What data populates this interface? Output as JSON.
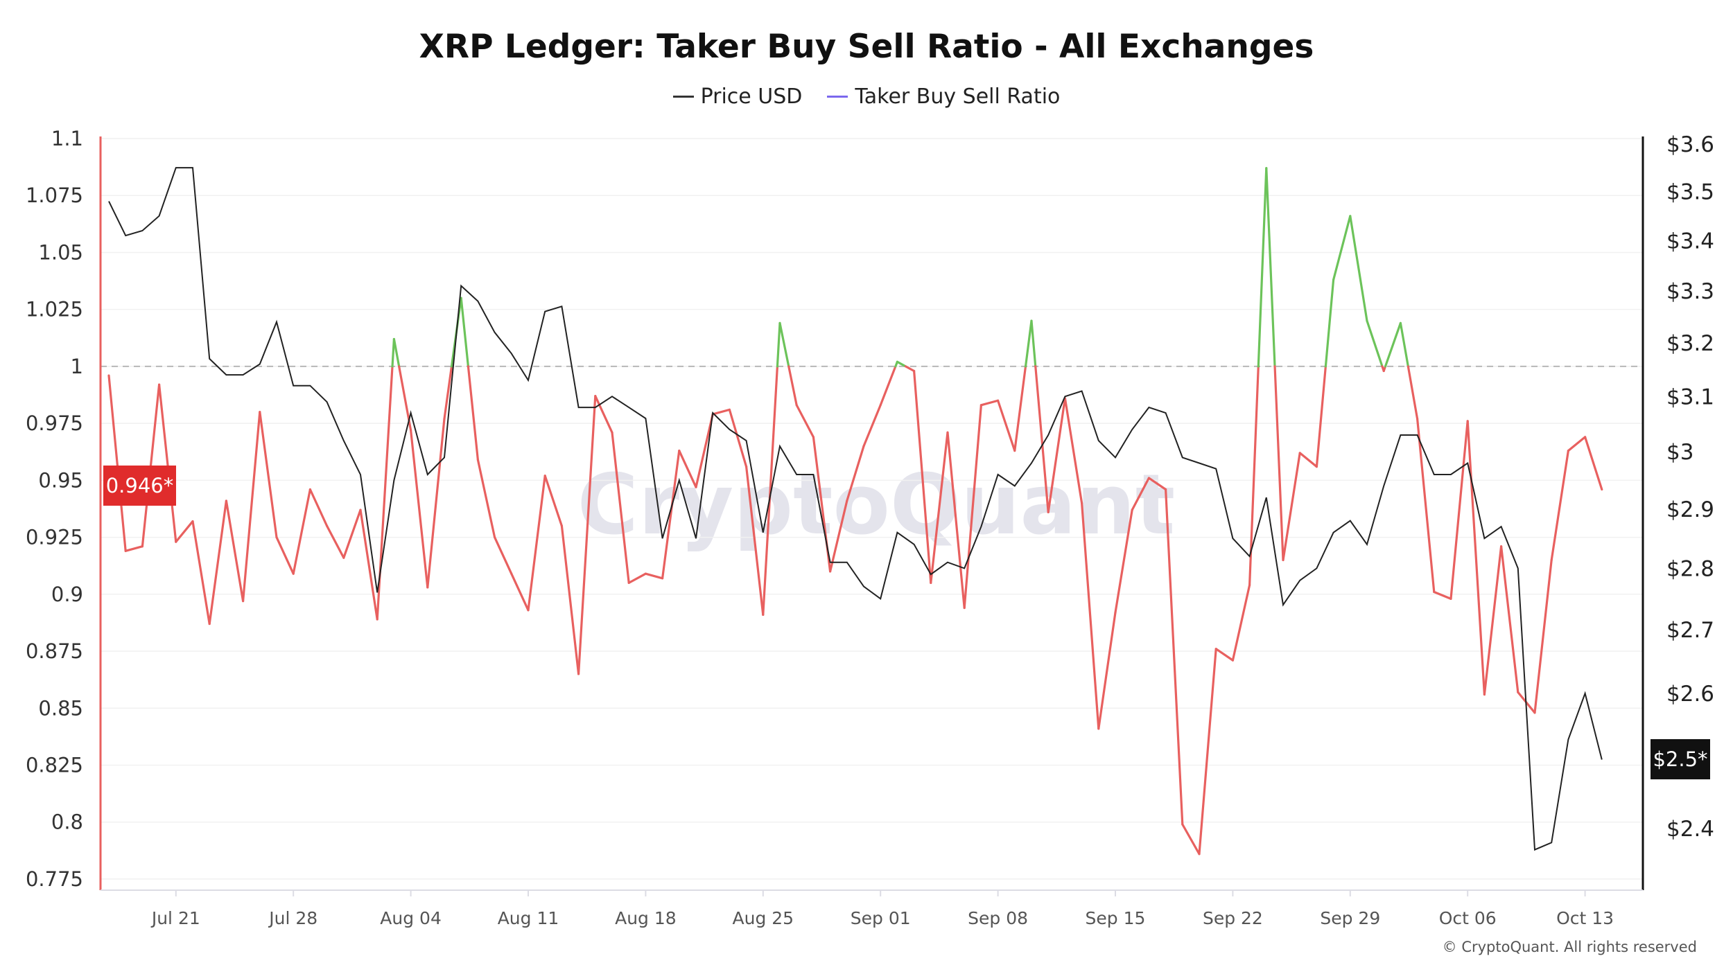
{
  "chart_data": {
    "type": "line",
    "title": "XRP Ledger: Taker Buy Sell Ratio - All Exchanges",
    "legend": {
      "placement": "top-center",
      "entries": [
        "Price USD",
        "Taker Buy Sell Ratio"
      ]
    },
    "x": [
      "Jul 17",
      "Jul 18",
      "Jul 19",
      "Jul 20",
      "Jul 21",
      "Jul 22",
      "Jul 23",
      "Jul 24",
      "Jul 25",
      "Jul 26",
      "Jul 27",
      "Jul 28",
      "Jul 29",
      "Jul 30",
      "Jul 31",
      "Aug 01",
      "Aug 02",
      "Aug 03",
      "Aug 04",
      "Aug 05",
      "Aug 06",
      "Aug 07",
      "Aug 08",
      "Aug 09",
      "Aug 10",
      "Aug 11",
      "Aug 12",
      "Aug 13",
      "Aug 14",
      "Aug 15",
      "Aug 16",
      "Aug 17",
      "Aug 18",
      "Aug 19",
      "Aug 20",
      "Aug 21",
      "Aug 22",
      "Aug 23",
      "Aug 24",
      "Aug 25",
      "Aug 26",
      "Aug 27",
      "Aug 28",
      "Aug 29",
      "Aug 30",
      "Aug 31",
      "Sep 01",
      "Sep 02",
      "Sep 03",
      "Sep 04",
      "Sep 05",
      "Sep 06",
      "Sep 07",
      "Sep 08",
      "Sep 09",
      "Sep 10",
      "Sep 11",
      "Sep 12",
      "Sep 13",
      "Sep 14",
      "Sep 15",
      "Sep 16",
      "Sep 17",
      "Sep 18",
      "Sep 19",
      "Sep 20",
      "Sep 21",
      "Sep 22",
      "Sep 23",
      "Sep 24",
      "Sep 25",
      "Sep 26",
      "Sep 27",
      "Sep 28",
      "Sep 29",
      "Sep 30",
      "Oct 01",
      "Oct 02",
      "Oct 03",
      "Oct 04",
      "Oct 05",
      "Oct 06",
      "Oct 07",
      "Oct 08",
      "Oct 09",
      "Oct 10",
      "Oct 11",
      "Oct 12",
      "Oct 13",
      "Oct 14"
    ],
    "x_ticks": [
      "Jul 21",
      "Jul 28",
      "Aug 04",
      "Aug 11",
      "Aug 18",
      "Aug 25",
      "Sep 01",
      "Sep 08",
      "Sep 15",
      "Sep 22",
      "Sep 29",
      "Oct 06",
      "Oct 13"
    ],
    "series": [
      {
        "name": "Taker Buy Sell Ratio",
        "axis": "left",
        "color_below": "#e8605f",
        "color_above": "#6cc35a",
        "threshold": 1,
        "values": [
          0.996,
          0.919,
          0.921,
          0.992,
          0.923,
          0.932,
          0.887,
          0.941,
          0.897,
          0.98,
          0.925,
          0.909,
          0.946,
          0.93,
          0.916,
          0.937,
          0.889,
          1.012,
          0.972,
          0.903,
          0.977,
          1.03,
          0.959,
          0.925,
          0.909,
          0.893,
          0.952,
          0.93,
          0.865,
          0.987,
          0.971,
          0.905,
          0.909,
          0.907,
          0.963,
          0.947,
          0.979,
          0.981,
          0.956,
          0.891,
          1.019,
          0.983,
          0.969,
          0.91,
          0.941,
          0.965,
          0.983,
          1.002,
          0.998,
          0.905,
          0.971,
          0.894,
          0.983,
          0.985,
          0.963,
          1.02,
          0.936,
          0.986,
          0.94,
          0.841,
          0.892,
          0.937,
          0.951,
          0.946,
          0.799,
          0.786,
          0.876,
          0.871,
          0.904,
          1.087,
          0.915,
          0.962,
          0.956,
          1.038,
          1.066,
          1.02,
          0.998,
          1.019,
          0.977,
          0.901,
          0.898,
          0.976,
          0.856,
          0.921,
          0.857,
          0.848,
          0.915,
          0.963,
          0.969,
          0.946
        ]
      },
      {
        "name": "Price USD",
        "axis": "right",
        "color": "#222222",
        "values": [
          3.48,
          3.41,
          3.42,
          3.45,
          3.55,
          3.55,
          3.17,
          3.14,
          3.14,
          3.16,
          3.24,
          3.12,
          3.12,
          3.09,
          3.02,
          2.96,
          2.76,
          2.95,
          3.07,
          2.96,
          2.99,
          3.31,
          3.28,
          3.22,
          3.18,
          3.13,
          3.26,
          3.27,
          3.08,
          3.08,
          3.1,
          3.08,
          3.06,
          2.85,
          2.95,
          2.85,
          3.07,
          3.04,
          3.02,
          2.86,
          3.01,
          2.96,
          2.96,
          2.81,
          2.81,
          2.77,
          2.75,
          2.86,
          2.84,
          2.79,
          2.81,
          2.8,
          2.87,
          2.96,
          2.94,
          2.98,
          3.03,
          3.1,
          3.11,
          3.02,
          2.99,
          3.04,
          3.08,
          3.07,
          2.99,
          2.98,
          2.97,
          2.85,
          2.82,
          2.92,
          2.74,
          2.78,
          2.8,
          2.86,
          2.88,
          2.84,
          2.94,
          3.03,
          3.03,
          2.96,
          2.96,
          2.98,
          2.85,
          2.87,
          2.8,
          2.37,
          2.38,
          2.53,
          2.6,
          2.5
        ]
      }
    ],
    "y_left": {
      "ylim": [
        0.77,
        1.1
      ],
      "ticks": [
        "1.1",
        "1.075",
        "1.05",
        "1.025",
        "1",
        "0.975",
        "0.95",
        "0.925",
        "0.9",
        "0.875",
        "0.85",
        "0.825",
        "0.8",
        "0.775"
      ],
      "axis_color": "#e8605f",
      "reference_line": 1,
      "current_label": "0.946*",
      "current_value": 0.946
    },
    "y_right": {
      "scale": "log",
      "ylim": [
        2.32,
        3.62
      ],
      "ticks": [
        "$3.6",
        "$3.5",
        "$3.4",
        "$3.3",
        "$3.2",
        "$3.1",
        "$3",
        "$2.9",
        "$2.8",
        "$2.7",
        "$2.6",
        "$2.4"
      ],
      "tick_values": [
        3.6,
        3.5,
        3.4,
        3.3,
        3.2,
        3.1,
        3.0,
        2.9,
        2.8,
        2.7,
        2.6,
        2.4
      ],
      "current_label": "$2.5*",
      "current_value": 2.5
    },
    "grid": true,
    "legend_colors": {
      "Price USD": "#333333",
      "Taker Buy Sell Ratio": "#7b68ee"
    }
  },
  "watermark": "CryptoQuant",
  "copyright": "© CryptoQuant. All rights reserved"
}
